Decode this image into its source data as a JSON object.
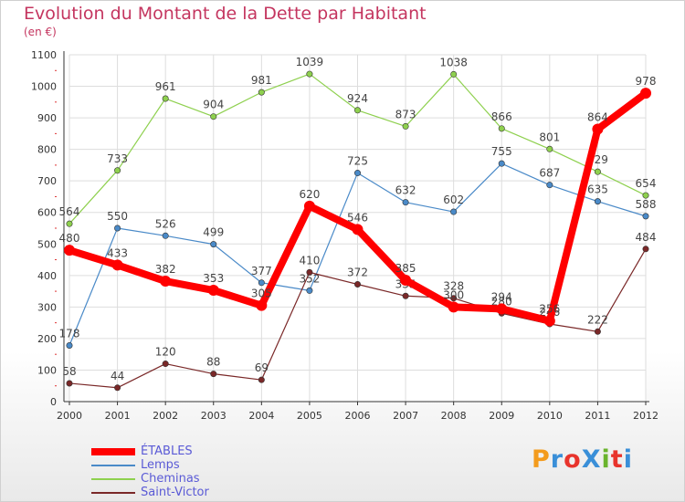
{
  "title": "Evolution du Montant de la Dette par Habitant",
  "subtitle": "(en €)",
  "logo": {
    "text": "ProXiti",
    "colors": [
      "#f39b1d",
      "#3a8fd8",
      "#e8342c",
      "#3a8fd8",
      "#6ab42d",
      "#e8342c",
      "#3a8fd8"
    ]
  },
  "chart_data": {
    "type": "line",
    "x": [
      "2000",
      "2001",
      "2002",
      "2003",
      "2004",
      "2005",
      "2006",
      "2007",
      "2008",
      "2009",
      "2010",
      "2011",
      "2012"
    ],
    "ylim": [
      0,
      1100
    ],
    "yticks": [
      0,
      100,
      200,
      300,
      400,
      500,
      600,
      700,
      800,
      900,
      1000,
      1100
    ],
    "grid": true,
    "legend": "bottom-left",
    "series": [
      {
        "name": "ÉTABLES",
        "color": "#ff0000",
        "values": [
          480,
          433,
          382,
          353,
          305,
          620,
          546,
          385,
          300,
          294,
          256,
          864,
          978
        ]
      },
      {
        "name": "Lemps",
        "color": "#4a8ac8",
        "values": [
          178,
          550,
          526,
          499,
          377,
          352,
          725,
          632,
          602,
          755,
          687,
          635,
          588
        ]
      },
      {
        "name": "Cheminas",
        "color": "#8ed04e",
        "values": [
          564,
          733,
          961,
          904,
          981,
          1039,
          924,
          873,
          1038,
          866,
          801,
          729,
          654
        ]
      },
      {
        "name": "Saint-Victor",
        "color": "#7a2828",
        "values": [
          58,
          44,
          120,
          88,
          69,
          410,
          372,
          335,
          328,
          280,
          246,
          222,
          484
        ]
      }
    ]
  }
}
